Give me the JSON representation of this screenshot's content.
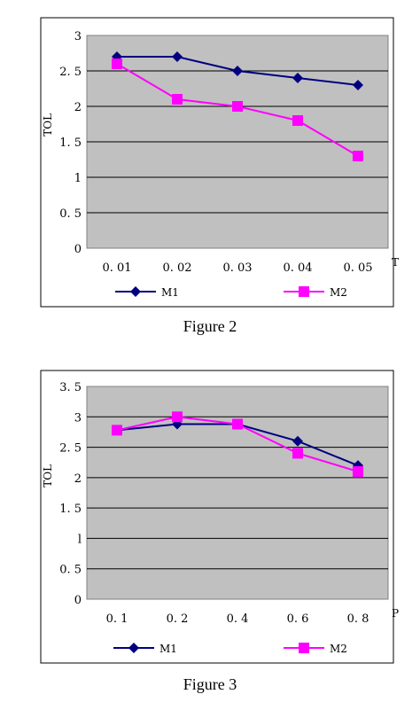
{
  "chart_data": [
    {
      "type": "line",
      "caption": "Figure 2",
      "xlabel": "T",
      "ylabel": "TOL",
      "categories": [
        "0. 01",
        "0. 02",
        "0. 03",
        "0. 04",
        "0. 05"
      ],
      "ylim": [
        0,
        3
      ],
      "yticks": [
        0,
        0.5,
        1,
        1.5,
        2,
        2.5,
        3
      ],
      "ytick_labels": [
        "0",
        "0. 5",
        "1",
        "1. 5",
        "2",
        "2. 5",
        "3"
      ],
      "grid": true,
      "legend_position": "bottom",
      "series": [
        {
          "name": "M1",
          "values": [
            2.7,
            2.7,
            2.5,
            2.4,
            2.3
          ],
          "color": "#000080",
          "marker": "diamond"
        },
        {
          "name": "M2",
          "values": [
            2.6,
            2.1,
            2.0,
            1.8,
            1.3
          ],
          "color": "#ff00ff",
          "marker": "square"
        }
      ]
    },
    {
      "type": "line",
      "caption": "Figure 3",
      "xlabel": "P",
      "ylabel": "TOL",
      "categories": [
        "0. 1",
        "0. 2",
        "0. 4",
        "0. 6",
        "0. 8"
      ],
      "ylim": [
        0,
        3.5
      ],
      "yticks": [
        0,
        0.5,
        1,
        1.5,
        2,
        2.5,
        3,
        3.5
      ],
      "ytick_labels": [
        "0",
        "0. 5",
        "l",
        "1. 5",
        "2",
        "2. 5",
        "3",
        "3. 5"
      ],
      "grid": true,
      "legend_position": "bottom",
      "series": [
        {
          "name": "M1",
          "values": [
            2.78,
            2.88,
            2.88,
            2.6,
            2.2
          ],
          "color": "#000080",
          "marker": "diamond"
        },
        {
          "name": "M2",
          "values": [
            2.78,
            3.0,
            2.88,
            2.4,
            2.1
          ],
          "color": "#ff00ff",
          "marker": "square"
        }
      ]
    }
  ],
  "colors": {
    "plot_background": "#c0c0c0",
    "gridline": "#000000"
  }
}
